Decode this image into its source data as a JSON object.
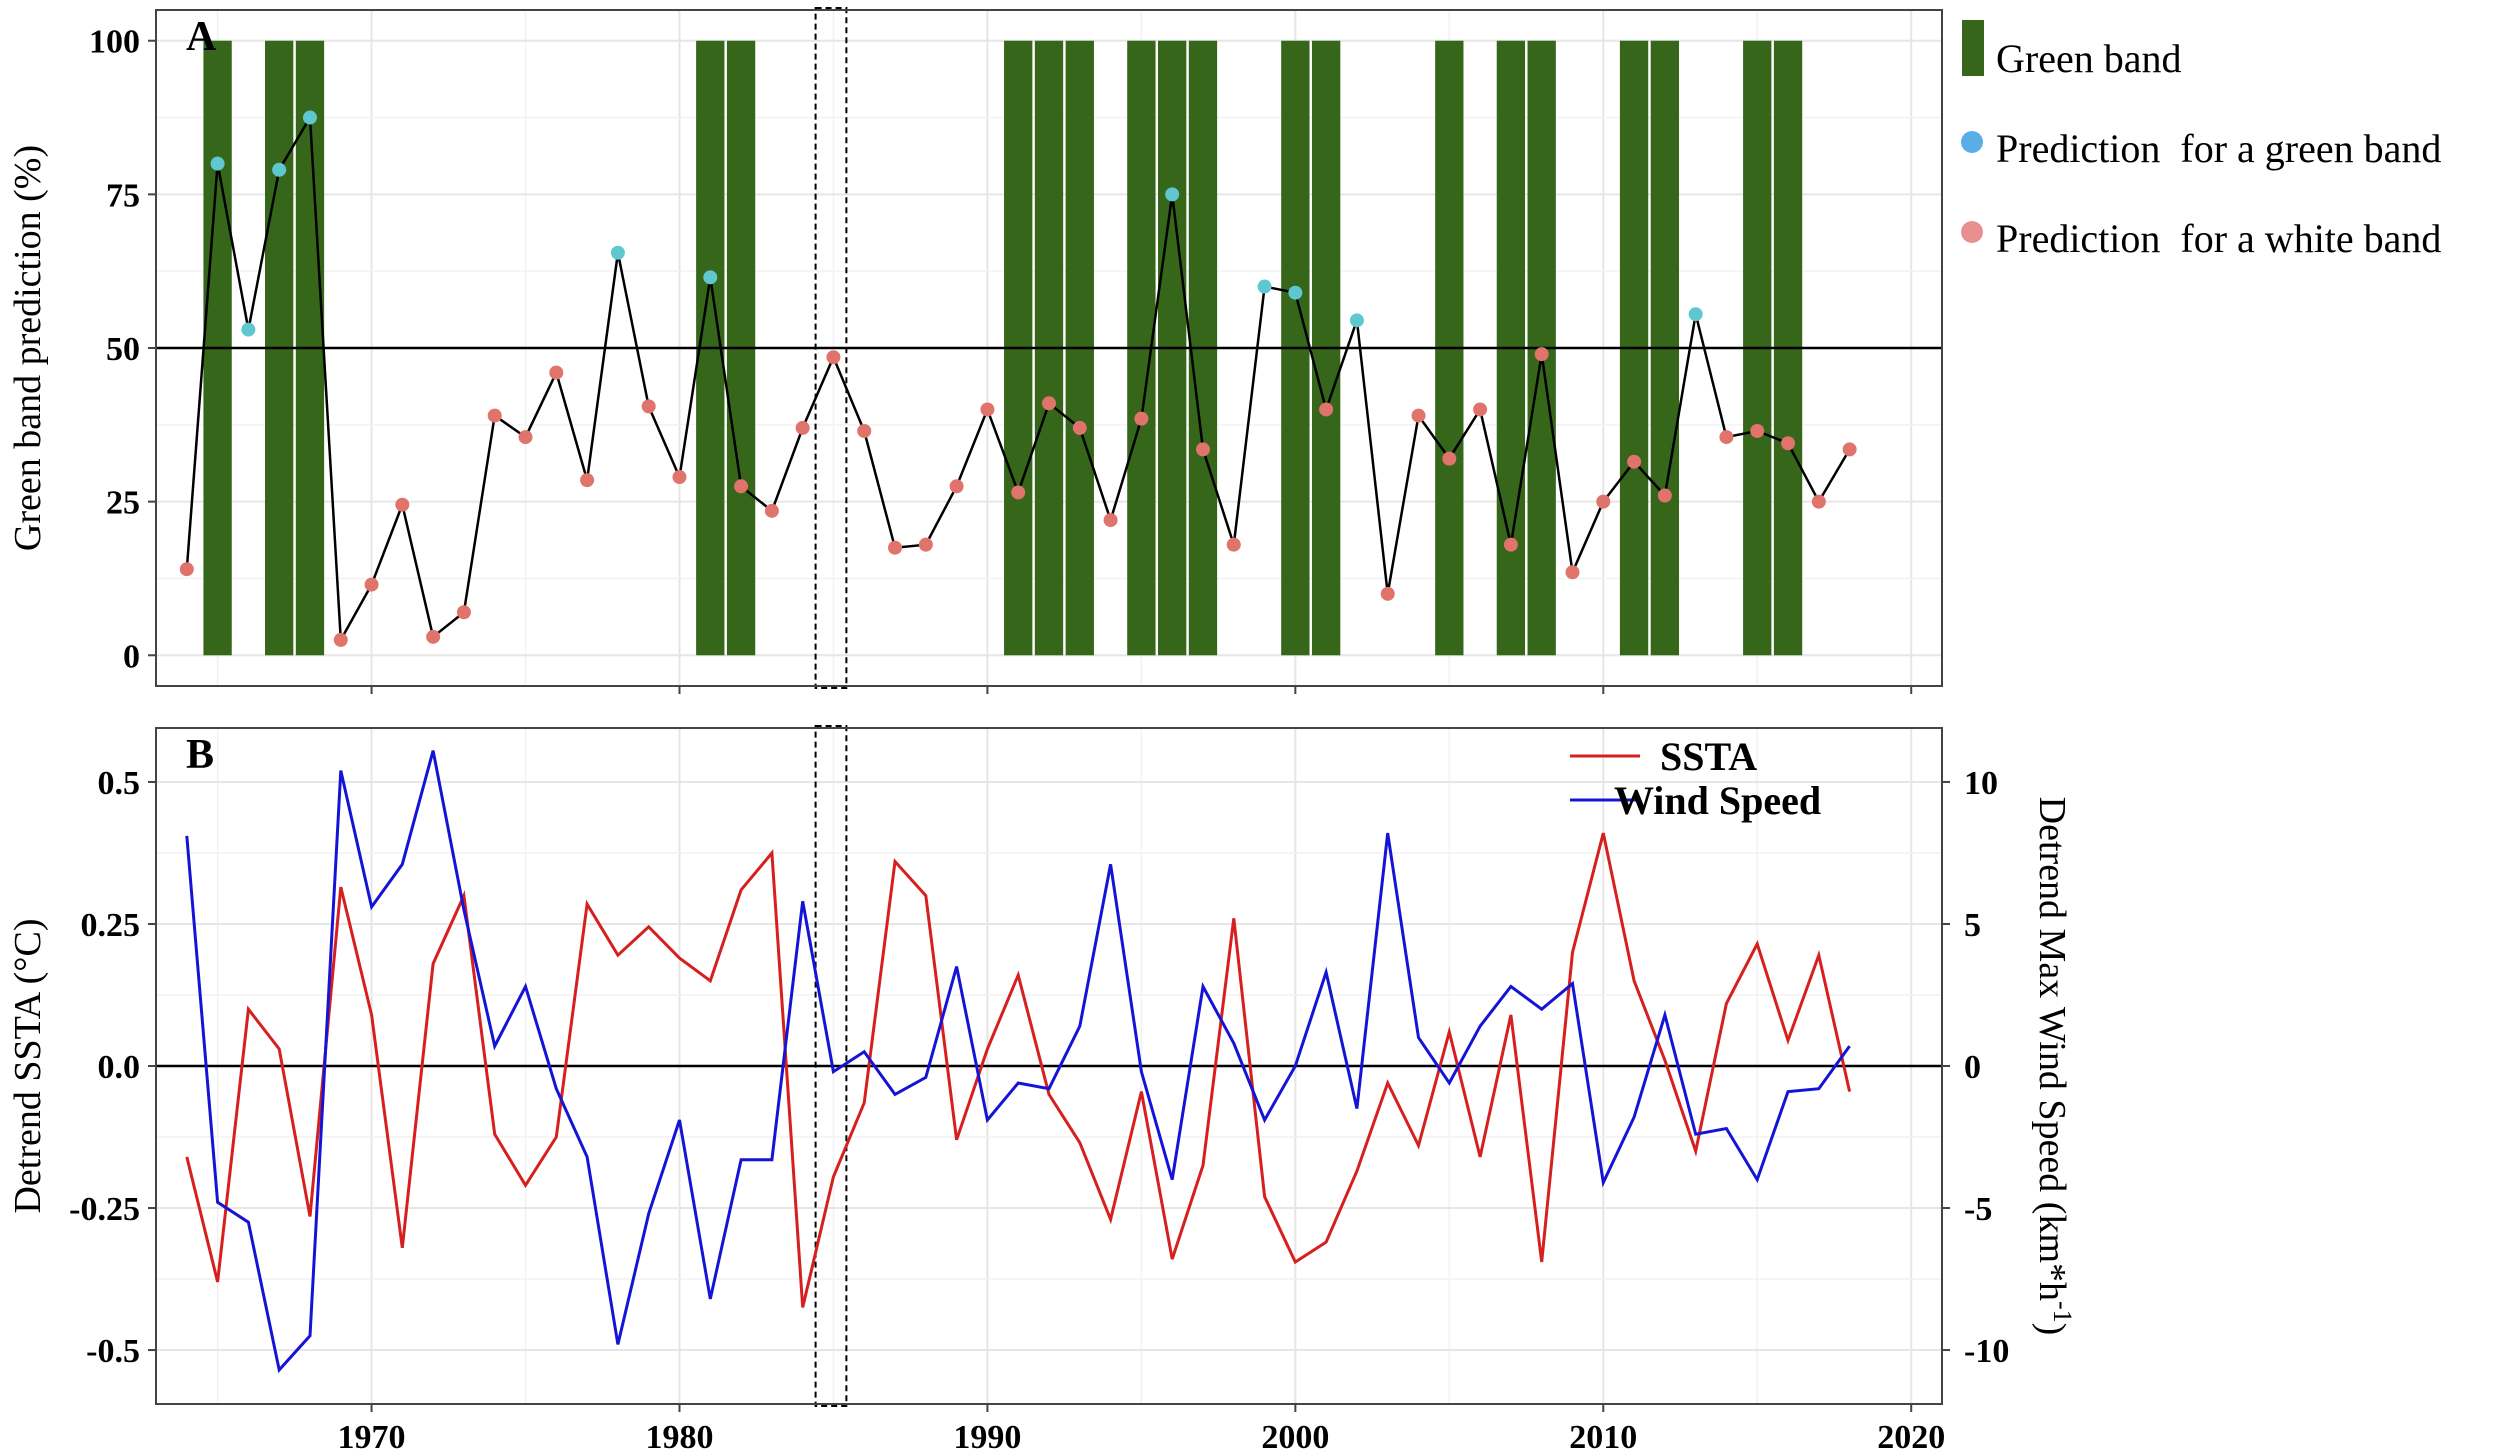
{
  "chart_data": [
    {
      "type": "bar",
      "panel_label": "A",
      "ylabel": "Green band prediction (%)",
      "xlim": [
        1963,
        2021
      ],
      "ylim": [
        -5,
        105
      ],
      "yticks": [
        "0",
        "25",
        "50",
        "75",
        "100"
      ],
      "grid": true,
      "threshold_line": 50,
      "legend": {
        "placement": "outside-right",
        "items": [
          "Green band",
          "Prediction  for a green band",
          "Prediction  for a white band"
        ]
      },
      "colors": {
        "green_band": "#35661a",
        "green_prediction": "#5fc7cf",
        "white_prediction": "#e0736c",
        "line": "#000000"
      },
      "green_band_years": [
        1965,
        1967,
        1968,
        1981,
        1982,
        1991,
        1992,
        1993,
        1995,
        1996,
        1997,
        2000,
        2001,
        2005,
        2007,
        2008,
        2011,
        2012,
        2015,
        2016
      ],
      "highlight_year": 1985,
      "series": [
        {
          "name": "Prediction",
          "x": [
            1964,
            1965,
            1966,
            1967,
            1968,
            1969,
            1970,
            1971,
            1972,
            1973,
            1974,
            1975,
            1976,
            1977,
            1978,
            1979,
            1980,
            1981,
            1982,
            1983,
            1984,
            1985,
            1986,
            1987,
            1988,
            1989,
            1990,
            1991,
            1992,
            1993,
            1994,
            1995,
            1996,
            1997,
            1998,
            1999,
            2000,
            2001,
            2002,
            2003,
            2004,
            2005,
            2006,
            2007,
            2008,
            2009,
            2010,
            2011,
            2012,
            2013,
            2014,
            2015,
            2016,
            2017,
            2018
          ],
          "values": [
            14,
            80,
            53,
            79,
            87.5,
            2.5,
            11.5,
            24.5,
            3,
            7,
            39,
            35.5,
            46,
            28.5,
            65.5,
            40.5,
            29,
            61.5,
            27.5,
            23.5,
            37,
            48.5,
            36.5,
            17.5,
            18,
            27.5,
            40,
            26.5,
            41,
            37,
            22,
            38.5,
            75,
            33.5,
            18,
            60,
            59,
            40,
            54.5,
            10,
            39,
            32,
            40,
            18,
            49,
            13.5,
            25,
            31.5,
            26,
            55.5,
            35.5,
            36.5,
            34.5,
            25,
            33.5
          ],
          "class": [
            "white",
            "green",
            "green",
            "green",
            "green",
            "white",
            "white",
            "white",
            "white",
            "white",
            "white",
            "white",
            "white",
            "white",
            "green",
            "white",
            "white",
            "green",
            "white",
            "white",
            "white",
            "white",
            "white",
            "white",
            "white",
            "white",
            "white",
            "white",
            "white",
            "white",
            "white",
            "white",
            "green",
            "white",
            "white",
            "green",
            "green",
            "white",
            "green",
            "white",
            "white",
            "white",
            "white",
            "white",
            "white",
            "white",
            "white",
            "white",
            "white",
            "green",
            "white",
            "white",
            "white",
            "white",
            "white"
          ]
        }
      ]
    },
    {
      "type": "line",
      "panel_label": "B",
      "ylabel": "Detrend SSTA (°C)",
      "y2label": "Detrend Max Wind Speed (km*h⁻¹)",
      "ylabel2_main": "Detrend Max Wind Speed (km*h",
      "ylabel2_sup": "-1",
      "ylabel2_end": ")",
      "xlim": [
        1963,
        2021
      ],
      "ylim": [
        -0.595,
        0.595
      ],
      "y2lim": [
        -11.9,
        11.9
      ],
      "xticks": [
        "1970",
        "1980",
        "1990",
        "2000",
        "2010",
        "2020"
      ],
      "yticks": [
        "-0.5",
        "-0.25",
        "0.0",
        "0.25",
        "0.5"
      ],
      "y2ticks": [
        "-10",
        "-5",
        "0",
        "5",
        "10"
      ],
      "grid": true,
      "highlight_year": 1985,
      "legend": {
        "placement": "top-right",
        "items": [
          "SSTA",
          "Wind Speed"
        ]
      },
      "x": [
        1964,
        1965,
        1966,
        1967,
        1968,
        1969,
        1970,
        1971,
        1972,
        1973,
        1974,
        1975,
        1976,
        1977,
        1978,
        1979,
        1980,
        1981,
        1982,
        1983,
        1984,
        1985,
        1986,
        1987,
        1988,
        1989,
        1990,
        1991,
        1992,
        1993,
        1994,
        1995,
        1996,
        1997,
        1998,
        1999,
        2000,
        2001,
        2002,
        2003,
        2004,
        2005,
        2006,
        2007,
        2008,
        2009,
        2010,
        2011,
        2012,
        2013,
        2014,
        2015,
        2016,
        2017,
        2018
      ],
      "series": [
        {
          "name": "SSTA",
          "axis": "left",
          "color": "#d61f1f",
          "values": [
            -0.16,
            -0.38,
            0.1,
            0.03,
            -0.265,
            0.315,
            0.09,
            -0.32,
            0.18,
            0.3,
            -0.12,
            -0.21,
            -0.125,
            0.285,
            0.195,
            0.245,
            0.19,
            0.15,
            0.31,
            0.375,
            -0.425,
            -0.195,
            -0.065,
            0.36,
            0.3,
            -0.13,
            0.03,
            0.16,
            -0.05,
            -0.135,
            -0.27,
            -0.045,
            -0.34,
            -0.175,
            0.26,
            -0.23,
            -0.345,
            -0.31,
            -0.185,
            -0.03,
            -0.14,
            0.06,
            -0.16,
            0.09,
            -0.345,
            0.2,
            0.41,
            0.15,
            0.01,
            -0.15,
            0.11,
            0.215,
            0.045,
            0.195,
            -0.045
          ]
        },
        {
          "name": "Wind Speed",
          "axis": "right",
          "color": "#1414d6",
          "values": [
            8.1,
            -4.8,
            -5.5,
            -10.7,
            -9.5,
            10.4,
            5.6,
            7.1,
            11.1,
            5.5,
            0.7,
            2.8,
            -0.8,
            -3.2,
            -9.8,
            -5.2,
            -1.9,
            -8.2,
            -3.3,
            -3.3,
            5.8,
            -0.2,
            0.5,
            -1.0,
            -0.4,
            3.5,
            -1.9,
            -0.6,
            -0.8,
            1.4,
            7.1,
            -0.2,
            -4.0,
            2.8,
            0.8,
            -1.9,
            0.0,
            3.3,
            -1.5,
            8.2,
            1.0,
            -0.6,
            1.4,
            2.8,
            2.0,
            2.9,
            -4.1,
            -1.8,
            1.8,
            -2.4,
            -2.2,
            -4.0,
            -0.9,
            -0.8,
            0.7
          ]
        }
      ]
    }
  ]
}
